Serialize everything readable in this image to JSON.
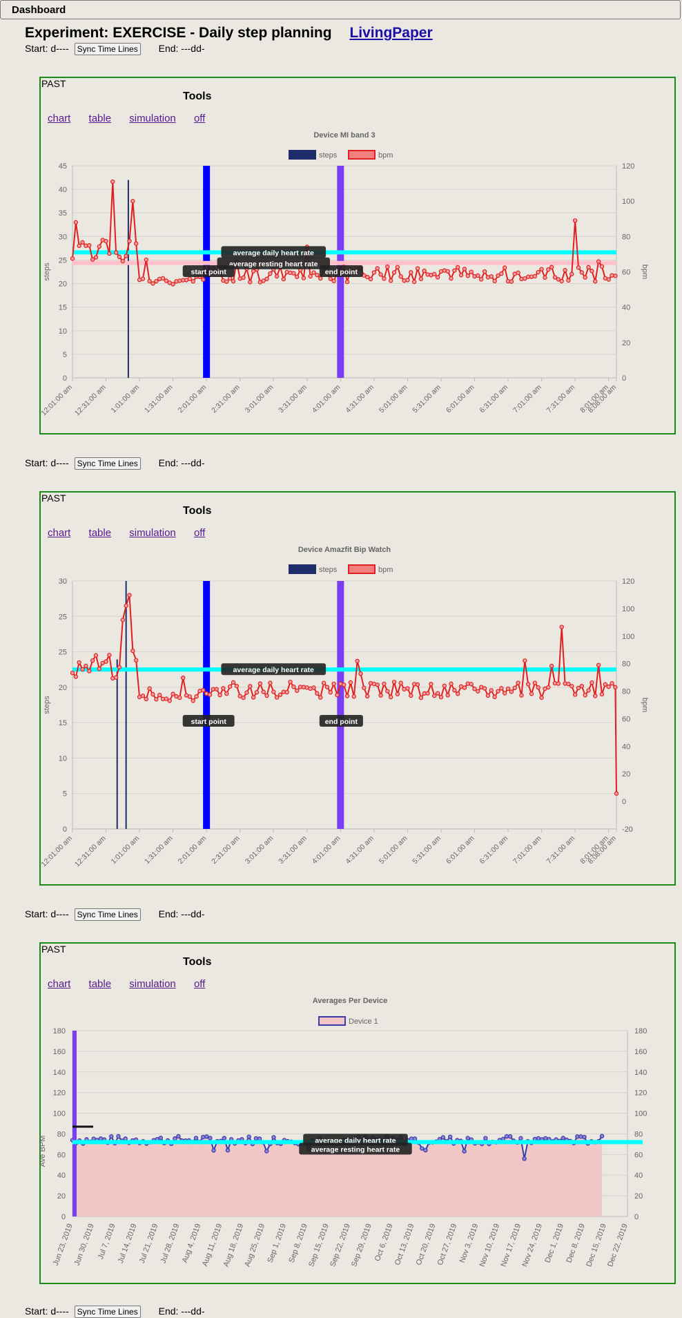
{
  "header": {
    "label": "Dashboard"
  },
  "experiment": {
    "title": "Experiment: EXERCISE - Daily step planning",
    "link_label": "LivingPaper"
  },
  "sync": {
    "start_label": "Start: d----",
    "button_label": "Sync Time Lines",
    "end_label": "End: ---dd-"
  },
  "panels": [
    {
      "past_label": "PAST",
      "tools_label": "Tools",
      "links": [
        "chart",
        "table",
        "simulation",
        "off"
      ],
      "chart_data": {
        "type": "line",
        "title": "Device MI band 3",
        "legend": [
          "steps",
          "bpm"
        ],
        "ylabel": "steps",
        "y2label": "bpm",
        "ylim": [
          0,
          45
        ],
        "yticks": [
          0,
          5,
          10,
          15,
          20,
          25,
          30,
          35,
          40,
          45
        ],
        "y2lim": [
          0,
          120
        ],
        "y2ticks": [
          0,
          20,
          40,
          60,
          80,
          100,
          120
        ],
        "xticks": [
          "12:01:00 am",
          "12:31:00 am",
          "1:01:00 am",
          "1:31:00 am",
          "2:01:00 am",
          "2:31:00 am",
          "3:01:00 am",
          "3:31:00 am",
          "4:01:00 am",
          "4:31:00 am",
          "5:01:00 am",
          "5:31:00 am",
          "6:01:00 am",
          "6:31:00 am",
          "7:01:00 am",
          "7:31:00 am",
          "8:01:00 am",
          "8:08:00 am"
        ],
        "annotations": {
          "start": "start point",
          "end": "end point",
          "avg_daily": "average daily heart rate",
          "avg_resting": "average resting heart rate"
        },
        "avg_daily_bpm": 71,
        "avg_resting_bpm": 65,
        "start_time": "2:01:00 am",
        "end_time": "4:01:00 am",
        "steps_bar": {
          "time": "12:51:00 am",
          "value": 42
        },
        "bpm_range": [
          48,
          113
        ],
        "colors": {
          "steps": "#1f2d6d",
          "bpm": "#e02020",
          "start": "#0000ff",
          "end": "#7b3ff2",
          "avg_daily": "#00ffff",
          "avg_resting": "#ffc0cb"
        }
      }
    },
    {
      "past_label": "PAST",
      "tools_label": "Tools",
      "links": [
        "chart",
        "table",
        "simulation",
        "off"
      ],
      "chart_data": {
        "type": "line",
        "title": "Device Amazfit Bip Watch",
        "legend": [
          "steps",
          "bpm"
        ],
        "ylabel": "steps",
        "y2label": "bpm",
        "ylim": [
          0,
          30
        ],
        "yticks": [
          "0",
          "5",
          "10",
          "15",
          "20",
          "25",
          "25",
          "30"
        ],
        "y2lim": [
          -20,
          120
        ],
        "y2ticks": [
          "-20",
          "0",
          "20",
          "40",
          "60",
          "80",
          "80",
          "100",
          "100",
          "120"
        ],
        "xticks": [
          "12:01:00 am",
          "12:31:00 am",
          "1:01:00 am",
          "1:31:00 am",
          "2:01:00 am",
          "2:31:00 am",
          "3:01:00 am",
          "3:31:00 am",
          "4:01:00 am",
          "4:31:00 am",
          "5:01:00 am",
          "5:31:00 am",
          "6:01:00 am",
          "6:31:00 am",
          "7:01:00 am",
          "7:31:00 am",
          "8:01:00 am",
          "8:08:00 am"
        ],
        "annotations": {
          "start": "start point",
          "end": "end point",
          "avg_daily": "average daily heart rate"
        },
        "avg_daily_bpm": 70,
        "start_time": "2:01:00 am",
        "end_time": "4:01:00 am",
        "bpm_range": [
          0,
          112
        ],
        "colors": {
          "steps": "#1f2d6d",
          "bpm": "#e02020",
          "start": "#0000ff",
          "end": "#7b3ff2",
          "avg_daily": "#00ffff"
        }
      }
    },
    {
      "past_label": "PAST",
      "tools_label": "Tools",
      "links": [
        "chart",
        "table",
        "simulation",
        "off"
      ],
      "chart_data": {
        "type": "line",
        "title": "Averages Per Device",
        "legend": [
          "Device 1"
        ],
        "ylabel": "Ave BPM",
        "ylim": [
          0,
          180
        ],
        "yticks": [
          0,
          20,
          40,
          60,
          80,
          100,
          120,
          140,
          160,
          180
        ],
        "xticks": [
          "Jun 23, 2019",
          "Jun 30, 2019",
          "Jul 7, 2019",
          "Jul 14, 2019",
          "Jul 21, 2019",
          "Jul 28, 2019",
          "Aug 4, 2019",
          "Aug 11, 2019",
          "Aug 18, 2019",
          "Aug 25, 2019",
          "Sep 1, 2019",
          "Sep 8, 2019",
          "Sep 15, 2019",
          "Sep 22, 2019",
          "Sep 29, 2019",
          "Oct 6, 2019",
          "Oct 13, 2019",
          "Oct 20, 2019",
          "Oct 27, 2019",
          "Nov 3, 2019",
          "Nov 10, 2019",
          "Nov 17, 2019",
          "Nov 24, 2019",
          "Dec 1, 2019",
          "Dec 8, 2019",
          "Dec 15, 2019",
          "Dec 22, 2019"
        ],
        "annotations": {
          "avg_daily": "average daily heart rate",
          "avg_resting": "average resting heart rate"
        },
        "avg_daily_bpm": 72,
        "avg_resting_bpm": 66,
        "bpm_range": [
          55,
          80
        ],
        "colors": {
          "series": "#3a3aa8",
          "fill": "#f0c6c6",
          "marker": "#7b3ff2",
          "avg_daily": "#00ffff"
        }
      }
    }
  ]
}
